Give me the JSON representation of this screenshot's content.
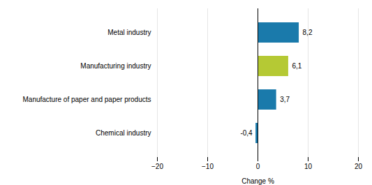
{
  "chart_data": {
    "type": "bar",
    "orientation": "horizontal",
    "categories": [
      "Metal industry",
      "Manufacturing industry",
      "Manufacture of paper and paper products",
      "Chemical industry"
    ],
    "values": [
      8.2,
      6.1,
      3.7,
      -0.4
    ],
    "value_labels": [
      "8,2",
      "6,1",
      "3,7",
      "-0,4"
    ],
    "colors": [
      "#1a7aab",
      "#b5c934",
      "#1a7aab",
      "#1a7aab"
    ],
    "xlabel": "Change %",
    "xlim": [
      -20,
      20
    ],
    "xticks": [
      -20,
      -10,
      0,
      10,
      20
    ],
    "grid": true
  }
}
